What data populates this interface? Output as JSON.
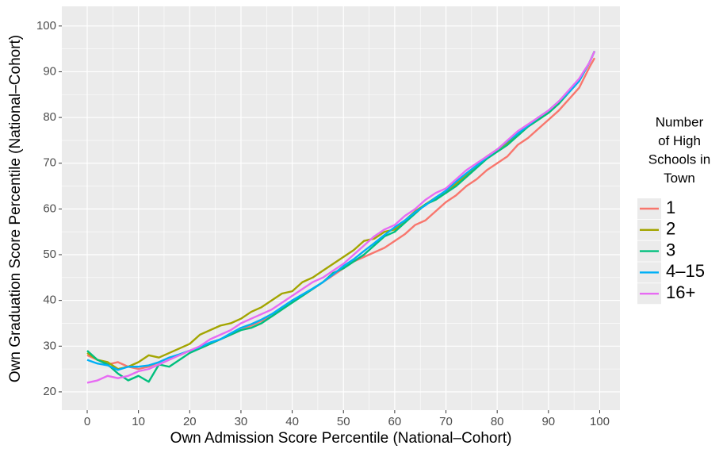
{
  "chart_data": {
    "type": "line",
    "x_label": "Own Admission Score Percentile (National–Cohort)",
    "y_label": "Own Graduation Score Percentile (National–Cohort)",
    "legend_title": [
      "Number",
      "of High",
      "Schools in",
      "Town"
    ],
    "legend_position": "right",
    "grid": true,
    "xlim": [
      -4.95,
      103.95
    ],
    "ylim": [
      16,
      104.3
    ],
    "xticks": [
      0,
      10,
      20,
      30,
      40,
      50,
      60,
      70,
      80,
      90,
      100
    ],
    "yticks": [
      20,
      30,
      40,
      50,
      60,
      70,
      80,
      90,
      100
    ],
    "x": [
      0,
      2,
      4,
      6,
      8,
      10,
      12,
      14,
      16,
      18,
      20,
      22,
      24,
      26,
      28,
      30,
      32,
      34,
      36,
      38,
      40,
      42,
      44,
      46,
      48,
      50,
      52,
      54,
      56,
      58,
      60,
      62,
      64,
      66,
      68,
      70,
      72,
      74,
      76,
      78,
      80,
      82,
      84,
      86,
      88,
      90,
      92,
      94,
      96,
      98,
      99
    ],
    "series": [
      {
        "name": "1",
        "color": "#F8766D",
        "values": [
          28,
          27,
          26,
          26.5,
          25.5,
          25,
          25.5,
          26.5,
          27.5,
          28,
          29,
          29.5,
          30.5,
          31.5,
          32.5,
          33.5,
          34.5,
          35.5,
          36.5,
          38,
          40,
          41,
          42.5,
          44,
          45.5,
          47,
          48.5,
          49.5,
          50.5,
          51.5,
          53,
          54.5,
          56.5,
          57.5,
          59.5,
          61.5,
          63,
          65,
          66.5,
          68.5,
          70,
          71.5,
          74,
          75.5,
          77.5,
          79.5,
          81.5,
          84,
          86.5,
          91,
          93
        ]
      },
      {
        "name": "2",
        "color": "#A3A500",
        "values": [
          28.5,
          27,
          26.5,
          25,
          25.5,
          26.5,
          28,
          27.5,
          28.5,
          29.5,
          30.5,
          32.5,
          33.5,
          34.5,
          35,
          36,
          37.5,
          38.5,
          40,
          41.5,
          42,
          44,
          45,
          46.5,
          48,
          49.5,
          51,
          53,
          53.5,
          55,
          55.5,
          57.5,
          59.5,
          61,
          62.5,
          63.5,
          65.5,
          67.5,
          69.5,
          71.5,
          73,
          74.5,
          76,
          78,
          79.5,
          81,
          83,
          85.5,
          88,
          92,
          94.5
        ]
      },
      {
        "name": "3",
        "color": "#00BF7D",
        "values": [
          29,
          27,
          26,
          24,
          22.5,
          23.5,
          22.2,
          26,
          25.5,
          27,
          28.5,
          29.5,
          30.5,
          31.5,
          32.5,
          33.5,
          34,
          35,
          36.5,
          38,
          39.5,
          41,
          42.5,
          44,
          46,
          47,
          48.5,
          50,
          52,
          54,
          55,
          57,
          59,
          61,
          62,
          63.5,
          65,
          67,
          69,
          71,
          72.5,
          74,
          76,
          78,
          79.5,
          81,
          83,
          85.5,
          88,
          92,
          94.5
        ]
      },
      {
        "name": "4–15",
        "color": "#00B0F6",
        "values": [
          27,
          26.2,
          25.8,
          24.8,
          25.5,
          25.5,
          25.8,
          26.5,
          27.5,
          28.2,
          29,
          29.8,
          30.8,
          31.5,
          32.8,
          34,
          34.8,
          35.8,
          37,
          38.5,
          40,
          41.3,
          42.6,
          44,
          45.7,
          47.5,
          49,
          50.8,
          52.5,
          54.3,
          56,
          57.5,
          59.3,
          60.8,
          62.5,
          64,
          66,
          67.8,
          69.5,
          71.3,
          73,
          74.8,
          76.5,
          78.2,
          80,
          81.5,
          83.5,
          85.5,
          88,
          92,
          94.5
        ]
      },
      {
        "name": "16+",
        "color": "#E76BF3",
        "values": [
          22,
          22.5,
          23.5,
          23,
          23.5,
          24.5,
          25,
          26,
          27,
          28,
          29,
          30,
          31.5,
          32.5,
          33.5,
          35,
          36,
          37,
          38,
          39.5,
          41,
          42.5,
          44,
          45,
          46.5,
          48,
          50,
          52,
          54,
          55.5,
          56.5,
          58.5,
          60,
          62,
          63.5,
          64.5,
          66.5,
          68.5,
          70,
          71.5,
          73,
          75,
          77,
          78.5,
          80,
          81.5,
          83.5,
          86,
          88.5,
          92,
          94.5
        ]
      }
    ]
  }
}
